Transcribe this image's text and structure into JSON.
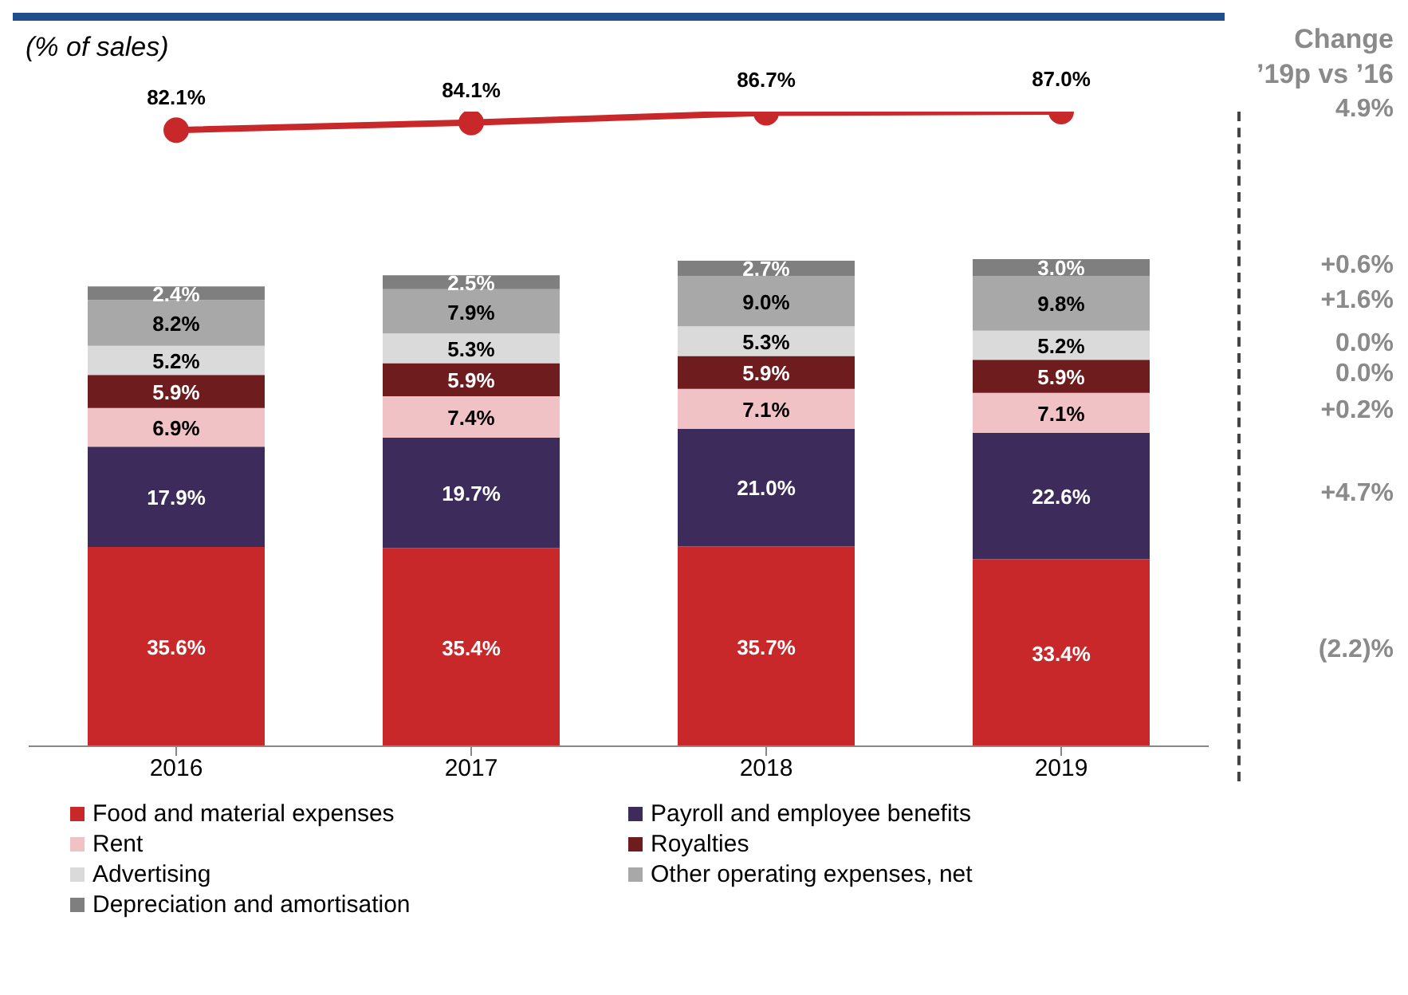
{
  "chart_data": [
    {
      "type": "line",
      "categories": [
        null,
        null,
        null,
        null
      ],
      "tick_labels": false,
      "color": "#c8282a",
      "marker": "circle",
      "values": [
        82.1,
        84.1,
        86.7,
        87.0
      ],
      "value_labels": [
        "82.1%",
        "84.1%",
        "86.7%",
        "87.0%"
      ],
      "annotations": [
        "(% of sales)",
        "Change ’19p vs ’16",
        "4.9%"
      ]
    },
    {
      "type": "bar",
      "categories": [
        "2016",
        "2017",
        "2018",
        "2019"
      ],
      "stacked": true,
      "legend": "bottom",
      "tick_labels": "x",
      "series": [
        {
          "name": "Food and material expenses",
          "color": "#c8282a",
          "values": [
            35.6,
            35.4,
            35.7,
            33.4
          ],
          "value_labels": [
            "35.6%",
            "35.4%",
            "35.7%",
            "33.4%"
          ]
        },
        {
          "name": "Payroll and employee benefits",
          "color": "#3d2b5c",
          "values": [
            17.9,
            19.7,
            21.0,
            22.6
          ],
          "value_labels": [
            "17.9%",
            "19.7%",
            "21.0%",
            "22.6%"
          ]
        },
        {
          "name": "Rent",
          "color": "#f0c2c6",
          "values": [
            6.9,
            7.4,
            7.1,
            7.1
          ],
          "value_labels": [
            "6.9%",
            "7.4%",
            "7.1%",
            "7.1%"
          ]
        },
        {
          "name": "Royalties",
          "color": "#6e1c1e",
          "values": [
            5.9,
            5.9,
            5.9,
            5.9
          ],
          "value_labels": [
            "5.9%",
            "5.9%",
            "5.9%",
            "5.9%"
          ]
        },
        {
          "name": "Advertising",
          "color": "#dadada",
          "values": [
            5.2,
            5.3,
            5.3,
            5.2
          ],
          "value_labels": [
            "5.2%",
            "5.3%",
            "5.3%",
            "5.2%"
          ]
        },
        {
          "name": "Other operating expenses, net",
          "color": "#a8a8a8",
          "values": [
            8.2,
            7.9,
            9.0,
            9.8
          ],
          "value_labels": [
            "8.2%",
            "7.9%",
            "9.0%",
            "9.8%"
          ]
        },
        {
          "name": "Depreciation and amortisation",
          "color": "#7f7f7f",
          "values": [
            2.4,
            2.5,
            2.7,
            3.0
          ],
          "value_labels": [
            "2.4%",
            "2.5%",
            "2.7%",
            "3.0%"
          ]
        }
      ],
      "annotations": [
        "+0.6%",
        "+1.6%",
        "0.0%",
        "0.0%",
        "+0.2%",
        "+4.7%",
        "(2.2)%"
      ]
    }
  ]
}
